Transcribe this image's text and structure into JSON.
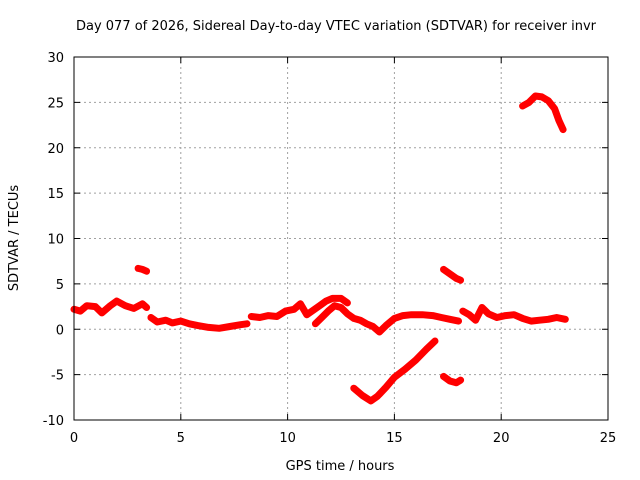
{
  "chart_data": {
    "type": "scatter",
    "title": "Day 077 of 2026, Sidereal Day-to-day VTEC variation (SDTVAR) for receiver invr",
    "xlabel": "GPS time / hours",
    "ylabel": "SDTVAR / TECUs",
    "xlim": [
      0,
      25
    ],
    "ylim": [
      -10,
      30
    ],
    "xticks": [
      0,
      5,
      10,
      15,
      20,
      25
    ],
    "yticks": [
      -10,
      -5,
      0,
      5,
      10,
      15,
      20,
      25,
      30
    ],
    "grid": true,
    "legend": "none",
    "series_color": "#ff0000",
    "series": [
      {
        "name": "arc-main-1",
        "points": [
          [
            0,
            2.2
          ],
          [
            0.3,
            2.0
          ],
          [
            0.6,
            2.6
          ],
          [
            1.0,
            2.5
          ],
          [
            1.3,
            1.8
          ],
          [
            1.7,
            2.6
          ],
          [
            2.0,
            3.1
          ],
          [
            2.4,
            2.6
          ],
          [
            2.8,
            2.3
          ],
          [
            3.2,
            2.8
          ],
          [
            3.4,
            2.4
          ]
        ]
      },
      {
        "name": "arc-main-2",
        "points": [
          [
            3.6,
            1.3
          ],
          [
            3.9,
            0.8
          ],
          [
            4.3,
            1.0
          ],
          [
            4.6,
            0.7
          ],
          [
            5.0,
            0.9
          ],
          [
            5.4,
            0.6
          ],
          [
            5.8,
            0.4
          ],
          [
            6.3,
            0.2
          ],
          [
            6.8,
            0.1
          ],
          [
            7.3,
            0.3
          ],
          [
            7.8,
            0.5
          ],
          [
            8.1,
            0.6
          ]
        ]
      },
      {
        "name": "arc-main-3",
        "points": [
          [
            8.3,
            1.4
          ],
          [
            8.7,
            1.3
          ],
          [
            9.1,
            1.5
          ],
          [
            9.5,
            1.4
          ],
          [
            9.9,
            2.0
          ],
          [
            10.3,
            2.2
          ],
          [
            10.6,
            2.8
          ],
          [
            10.9,
            1.6
          ],
          [
            11.2,
            2.1
          ],
          [
            11.5,
            2.6
          ],
          [
            11.8,
            3.1
          ],
          [
            12.1,
            3.4
          ],
          [
            12.5,
            3.4
          ],
          [
            12.8,
            2.9
          ]
        ]
      },
      {
        "name": "arc-main-4",
        "points": [
          [
            11.3,
            0.6
          ],
          [
            11.6,
            1.3
          ],
          [
            11.9,
            2.0
          ],
          [
            12.2,
            2.6
          ],
          [
            12.5,
            2.4
          ],
          [
            12.8,
            1.7
          ],
          [
            13.1,
            1.2
          ],
          [
            13.4,
            1.0
          ],
          [
            13.7,
            0.6
          ],
          [
            14.0,
            0.3
          ],
          [
            14.3,
            -0.3
          ],
          [
            14.6,
            0.4
          ],
          [
            15.0,
            1.2
          ],
          [
            15.4,
            1.5
          ],
          [
            15.8,
            1.6
          ],
          [
            16.3,
            1.6
          ],
          [
            16.8,
            1.5
          ],
          [
            17.2,
            1.3
          ],
          [
            17.6,
            1.1
          ],
          [
            18.0,
            0.9
          ]
        ]
      },
      {
        "name": "arc-main-5",
        "points": [
          [
            18.2,
            2.0
          ],
          [
            18.5,
            1.6
          ],
          [
            18.8,
            1.0
          ],
          [
            19.1,
            2.4
          ],
          [
            19.4,
            1.7
          ],
          [
            19.8,
            1.3
          ],
          [
            20.2,
            1.5
          ],
          [
            20.6,
            1.6
          ],
          [
            21.0,
            1.2
          ],
          [
            21.4,
            0.9
          ],
          [
            21.8,
            1.0
          ],
          [
            22.2,
            1.1
          ],
          [
            22.6,
            1.3
          ],
          [
            23.0,
            1.1
          ]
        ]
      },
      {
        "name": "arc-negative",
        "points": [
          [
            13.1,
            -6.5
          ],
          [
            13.5,
            -7.3
          ],
          [
            13.9,
            -7.9
          ],
          [
            14.2,
            -7.4
          ],
          [
            14.6,
            -6.4
          ],
          [
            15.0,
            -5.3
          ],
          [
            15.5,
            -4.4
          ],
          [
            16.0,
            -3.4
          ],
          [
            16.5,
            -2.2
          ],
          [
            16.9,
            -1.3
          ]
        ]
      },
      {
        "name": "arc-late-high",
        "points": [
          [
            21.0,
            24.6
          ],
          [
            21.3,
            25.0
          ],
          [
            21.6,
            25.7
          ],
          [
            21.9,
            25.6
          ],
          [
            22.2,
            25.2
          ],
          [
            22.5,
            24.3
          ],
          [
            22.7,
            23.0
          ],
          [
            22.9,
            22.0
          ]
        ]
      },
      {
        "name": "arc-mid-high",
        "points": [
          [
            17.3,
            6.6
          ],
          [
            17.6,
            6.1
          ],
          [
            17.9,
            5.6
          ],
          [
            18.1,
            5.4
          ]
        ]
      },
      {
        "name": "arc-early-high",
        "points": [
          [
            3.0,
            6.7
          ],
          [
            3.2,
            6.6
          ],
          [
            3.4,
            6.4
          ]
        ]
      },
      {
        "name": "arc-mid-low",
        "points": [
          [
            17.3,
            -5.2
          ],
          [
            17.6,
            -5.7
          ],
          [
            17.9,
            -5.9
          ],
          [
            18.1,
            -5.6
          ]
        ]
      }
    ]
  }
}
